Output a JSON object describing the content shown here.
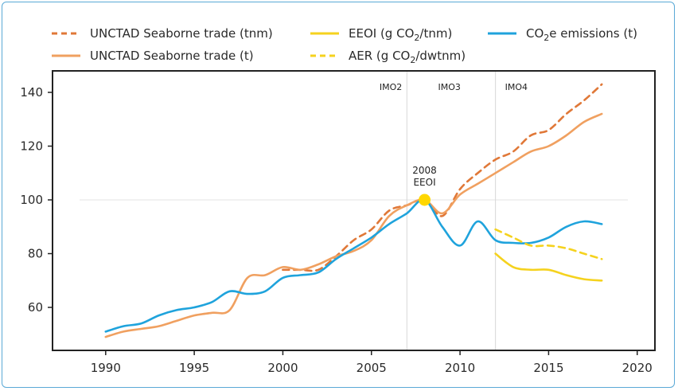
{
  "colors": {
    "trade": "#f0a060",
    "trade_dashed": "#e07838",
    "eeoi": "#f5d21e",
    "emissions": "#1fa3dc",
    "marker": "#ffd700",
    "frame": "#5aa9d6"
  },
  "chart_data": {
    "type": "line",
    "title": "",
    "xlabel": "",
    "ylabel": "",
    "xlim": [
      1987,
      2021
    ],
    "ylim": [
      44,
      148
    ],
    "x_ticks": [
      1990,
      1995,
      2000,
      2005,
      2010,
      2015,
      2020
    ],
    "y_ticks": [
      60,
      80,
      100,
      120,
      140
    ],
    "grid": false,
    "legend_position": "top",
    "legend": [
      {
        "key": "trade_tnm",
        "label_main": "UNCTAD Seaborne trade (tnm)",
        "label_sub": "",
        "label_tail": "",
        "row": 0,
        "col": 0
      },
      {
        "key": "eeoi",
        "label_main": "EEOI (g CO",
        "label_sub": "2",
        "label_tail": "/tnm)",
        "row": 0,
        "col": 1
      },
      {
        "key": "co2e",
        "label_main": "CO",
        "label_sub": "2",
        "label_tail": "e emissions (t)",
        "row": 0,
        "col": 2
      },
      {
        "key": "trade_t",
        "label_main": "UNCTAD Seaborne trade (t)",
        "label_sub": "",
        "label_tail": "",
        "row": 1,
        "col": 0
      },
      {
        "key": "aer",
        "label_main": "AER (g CO",
        "label_sub": "2",
        "label_tail": "/dwtnm)",
        "row": 1,
        "col": 1
      }
    ],
    "series": [
      {
        "key": "trade_tnm",
        "color": "#e07838",
        "dashed": true,
        "x": [
          2000,
          2001,
          2002,
          2003,
          2004,
          2005,
          2006,
          2007,
          2008,
          2009,
          2010,
          2011,
          2012,
          2013,
          2014,
          2015,
          2016,
          2017,
          2018
        ],
        "y": [
          74,
          74,
          74,
          79,
          85,
          89,
          96,
          98,
          100,
          94,
          104,
          110,
          115,
          118,
          124,
          126,
          132,
          137,
          143
        ]
      },
      {
        "key": "trade_t",
        "color": "#f0a060",
        "dashed": false,
        "x": [
          1990,
          1991,
          1992,
          1993,
          1994,
          1995,
          1996,
          1997,
          1998,
          1999,
          2000,
          2001,
          2002,
          2003,
          2004,
          2005,
          2006,
          2007,
          2008,
          2009,
          2010,
          2011,
          2012,
          2013,
          2014,
          2015,
          2016,
          2017,
          2018
        ],
        "y": [
          49,
          51,
          52,
          53,
          55,
          57,
          58,
          59,
          71,
          72,
          75,
          74,
          76,
          79,
          81,
          85,
          94,
          98,
          100,
          95,
          102,
          106,
          110,
          114,
          118,
          120,
          124,
          129,
          132
        ]
      },
      {
        "key": "co2e",
        "color": "#1fa3dc",
        "dashed": false,
        "x": [
          1990,
          1991,
          1992,
          1993,
          1994,
          1995,
          1996,
          1997,
          1998,
          1999,
          2000,
          2001,
          2002,
          2003,
          2004,
          2005,
          2006,
          2007,
          2008,
          2009,
          2010,
          2011,
          2012,
          2013,
          2014,
          2015,
          2016,
          2017,
          2018
        ],
        "y": [
          51,
          53,
          54,
          57,
          59,
          60,
          62,
          66,
          65,
          66,
          71,
          72,
          73,
          78,
          82,
          86,
          91,
          95,
          100,
          90,
          83,
          92,
          85,
          84,
          84,
          86,
          90,
          92,
          91
        ]
      },
      {
        "key": "eeoi",
        "color": "#f5d21e",
        "dashed": false,
        "x": [
          2012,
          2013,
          2014,
          2015,
          2016,
          2017,
          2018
        ],
        "y": [
          80,
          75,
          74,
          74,
          72,
          70.5,
          70
        ]
      },
      {
        "key": "aer",
        "color": "#f5d21e",
        "dashed": true,
        "x": [
          2012,
          2013,
          2014,
          2015,
          2016,
          2017,
          2018
        ],
        "y": [
          89,
          86,
          83,
          83,
          82,
          80,
          78
        ]
      }
    ],
    "reference_lines": [
      {
        "x": 2007,
        "label": "IMO2",
        "label_side": "left"
      },
      {
        "x": 2012,
        "label": "IMO4",
        "label_side": "right"
      }
    ],
    "era_labels": [
      {
        "x": 2009.4,
        "label": "IMO3"
      }
    ],
    "baseline_y": 100,
    "marker_point": {
      "x": 2008,
      "y": 100,
      "label_line1": "2008",
      "label_line2": "EEOI"
    }
  }
}
